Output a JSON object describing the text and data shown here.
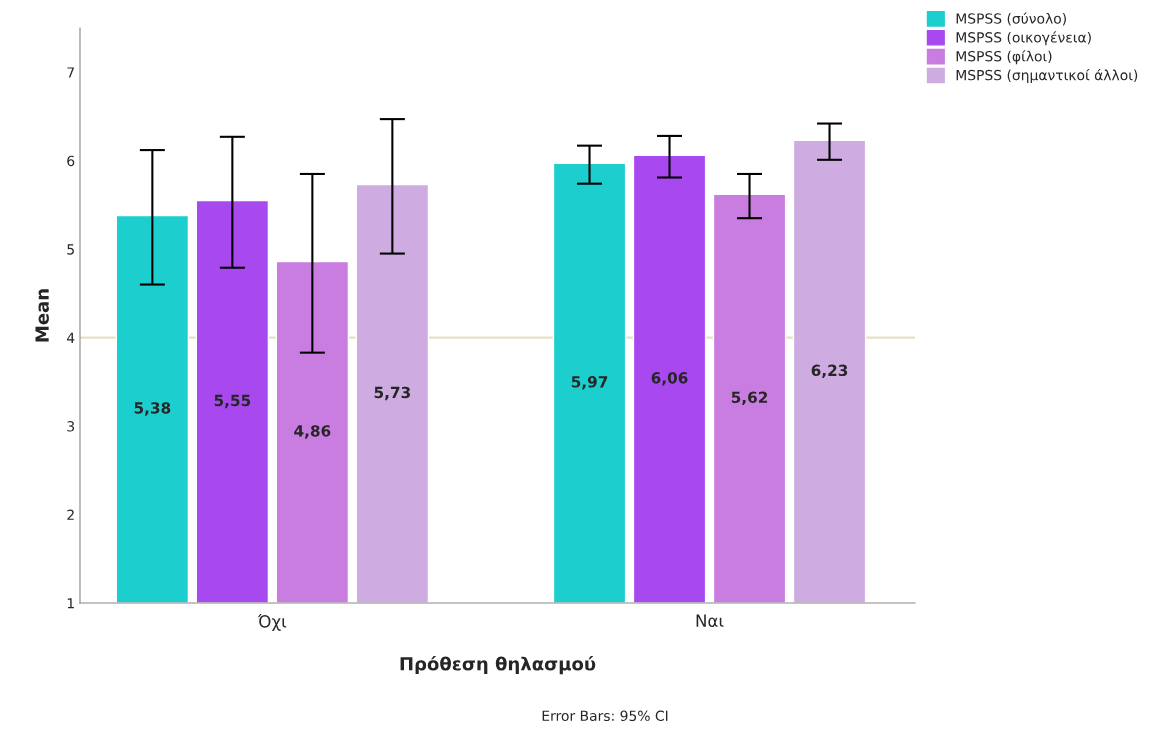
{
  "chart_data": {
    "type": "bar",
    "xlabel": "Πρόθεση θηλασμού",
    "ylabel": "Mean",
    "categories": [
      "Όχι",
      "Ναι"
    ],
    "series": [
      {
        "name": "MSPSS (σύνολο)",
        "color": "#1ccece",
        "values": [
          5.38,
          5.97
        ],
        "value_labels": [
          "5,38",
          "5,97"
        ],
        "errors": [
          [
            4.6,
            6.12
          ],
          [
            5.74,
            6.17
          ]
        ]
      },
      {
        "name": "MSPSS (οικογένεια)",
        "color": "#a849f0",
        "values": [
          5.55,
          6.06
        ],
        "value_labels": [
          "5,55",
          "6,06"
        ],
        "errors": [
          [
            4.79,
            6.27
          ],
          [
            5.81,
            6.28
          ]
        ]
      },
      {
        "name": "MSPSS (φίλοι)",
        "color": "#c97de0",
        "values": [
          4.86,
          5.62
        ],
        "value_labels": [
          "4,86",
          "5,62"
        ],
        "errors": [
          [
            3.83,
            5.85
          ],
          [
            5.35,
            5.85
          ]
        ]
      },
      {
        "name": "MSPSS (σημαντικοί άλλοι)",
        "color": "#ceabe0",
        "values": [
          5.73,
          6.23
        ],
        "value_labels": [
          "5,73",
          "6,23"
        ],
        "errors": [
          [
            4.95,
            6.47
          ],
          [
            6.01,
            6.42
          ]
        ]
      }
    ],
    "ylim": [
      1,
      7.5
    ],
    "yticks": [
      1,
      2,
      3,
      4,
      5,
      6,
      7
    ],
    "ref_lines": [
      {
        "axis": "y",
        "value": 4,
        "color": "#e8dfc4"
      }
    ],
    "grid": false,
    "legend": "top right",
    "annotations": [
      "Error Bars: 95% CI"
    ]
  }
}
